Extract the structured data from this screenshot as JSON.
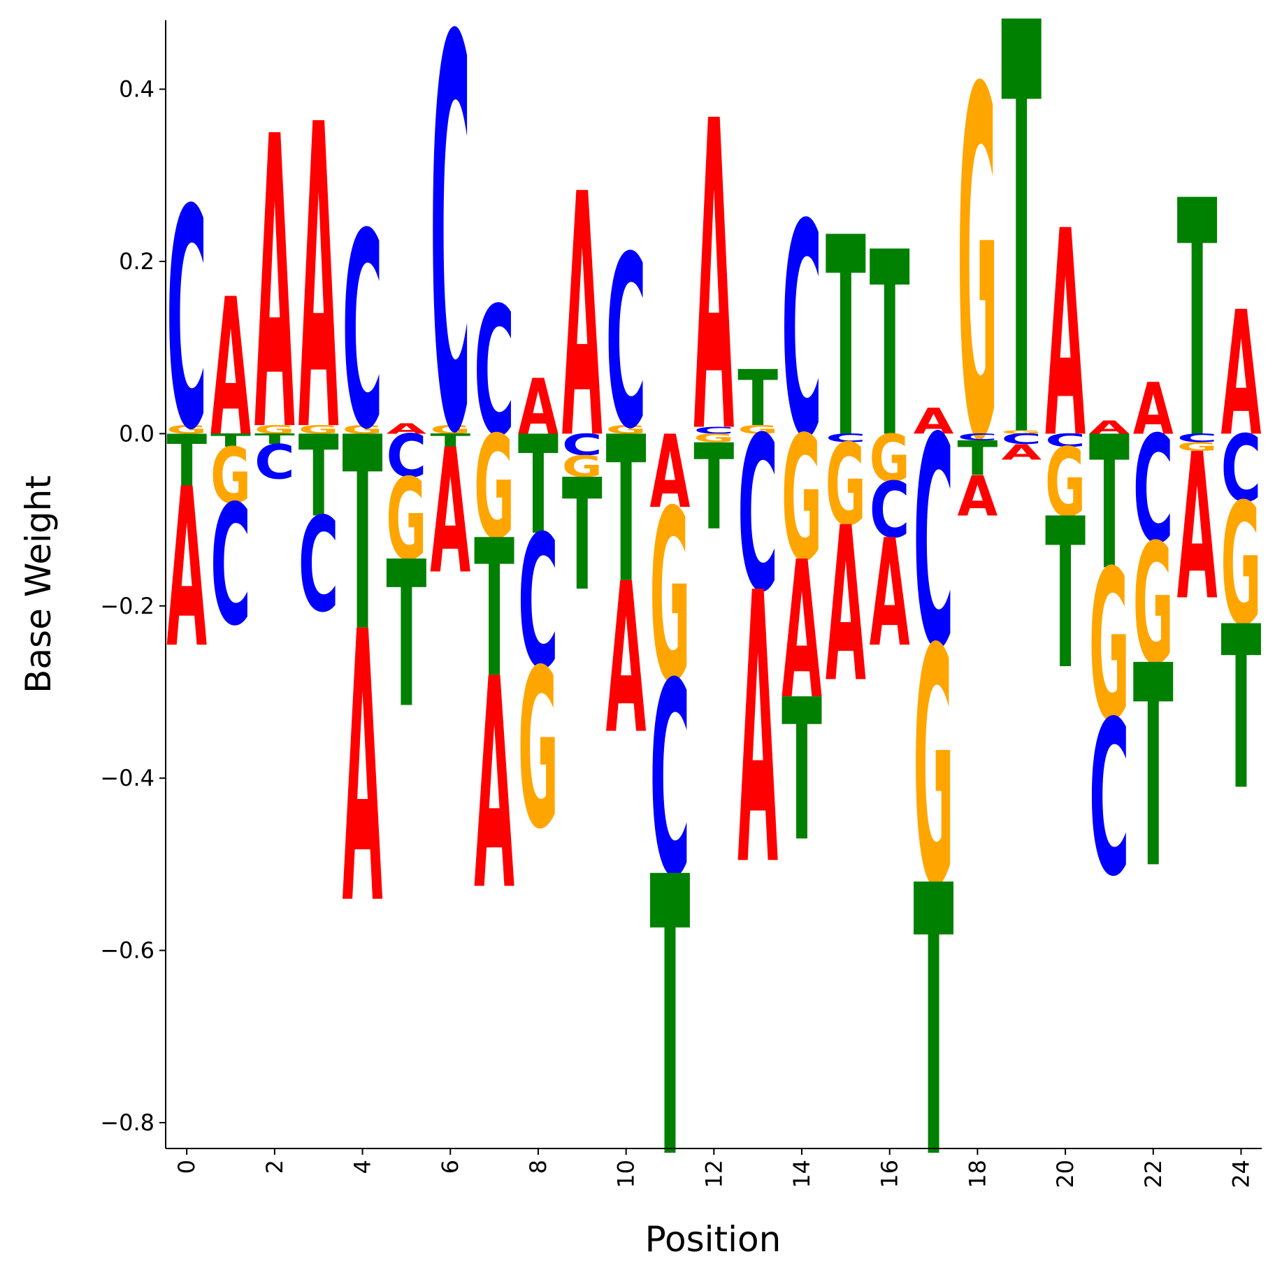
{
  "chart_data": {
    "type": "logo",
    "xlabel": "Position",
    "ylabel": "Base Weight",
    "x": [
      0,
      1,
      2,
      3,
      4,
      5,
      6,
      7,
      8,
      9,
      10,
      11,
      12,
      13,
      14,
      15,
      16,
      17,
      18,
      19,
      20,
      21,
      22,
      23,
      24
    ],
    "series": [
      {
        "name": "A",
        "color": "#ff0000",
        "values": [
          -0.185,
          0.16,
          0.34,
          0.354,
          -0.315,
          0.012,
          -0.145,
          -0.245,
          0.065,
          0.283,
          -0.175,
          -0.085,
          0.36,
          -0.315,
          -0.16,
          -0.18,
          -0.125,
          0.03,
          -0.047,
          -0.018,
          0.24,
          0.015,
          0.06,
          -0.17,
          0.145
        ]
      },
      {
        "name": "C",
        "color": "#0000ff",
        "values": [
          0.255,
          -0.14,
          -0.04,
          -0.11,
          0.227,
          -0.05,
          0.455,
          0.15,
          -0.155,
          -0.025,
          0.2,
          -0.225,
          0.008,
          -0.18,
          0.248,
          -0.01,
          -0.065,
          -0.245,
          -0.008,
          -0.012,
          -0.015,
          -0.18,
          -0.125,
          -0.01,
          -0.078
        ]
      },
      {
        "name": "G",
        "color": "#ffa500",
        "values": [
          0.01,
          -0.065,
          0.01,
          0.01,
          0.01,
          -0.095,
          0.01,
          -0.12,
          -0.185,
          -0.025,
          0.01,
          -0.2,
          -0.01,
          0.01,
          -0.145,
          -0.095,
          -0.055,
          -0.275,
          0.405,
          0.004,
          -0.08,
          -0.175,
          -0.14,
          -0.01,
          -0.142
        ]
      },
      {
        "name": "T",
        "color": "#008000",
        "values": [
          -0.06,
          -0.015,
          -0.012,
          -0.095,
          -0.225,
          -0.17,
          -0.015,
          -0.16,
          -0.115,
          -0.13,
          -0.17,
          -0.325,
          -0.1,
          0.065,
          -0.165,
          0.232,
          0.215,
          -0.315,
          -0.04,
          0.478,
          -0.175,
          -0.155,
          -0.235,
          0.275,
          -0.19
        ]
      }
    ],
    "xlim": [
      -0.48,
      24.47
    ],
    "ylim": [
      -0.83,
      0.48
    ],
    "xticks": [
      0,
      2,
      4,
      6,
      8,
      10,
      12,
      14,
      16,
      18,
      20,
      22,
      24
    ],
    "yticks": [
      {
        "value": -0.8,
        "label": "−0.8"
      },
      {
        "value": -0.6,
        "label": "−0.6"
      },
      {
        "value": -0.4,
        "label": "−0.4"
      },
      {
        "value": -0.2,
        "label": "−0.2"
      },
      {
        "value": 0.0,
        "label": "0.0"
      },
      {
        "value": 0.2,
        "label": "0.2"
      },
      {
        "value": 0.4,
        "label": "0.4"
      }
    ]
  }
}
